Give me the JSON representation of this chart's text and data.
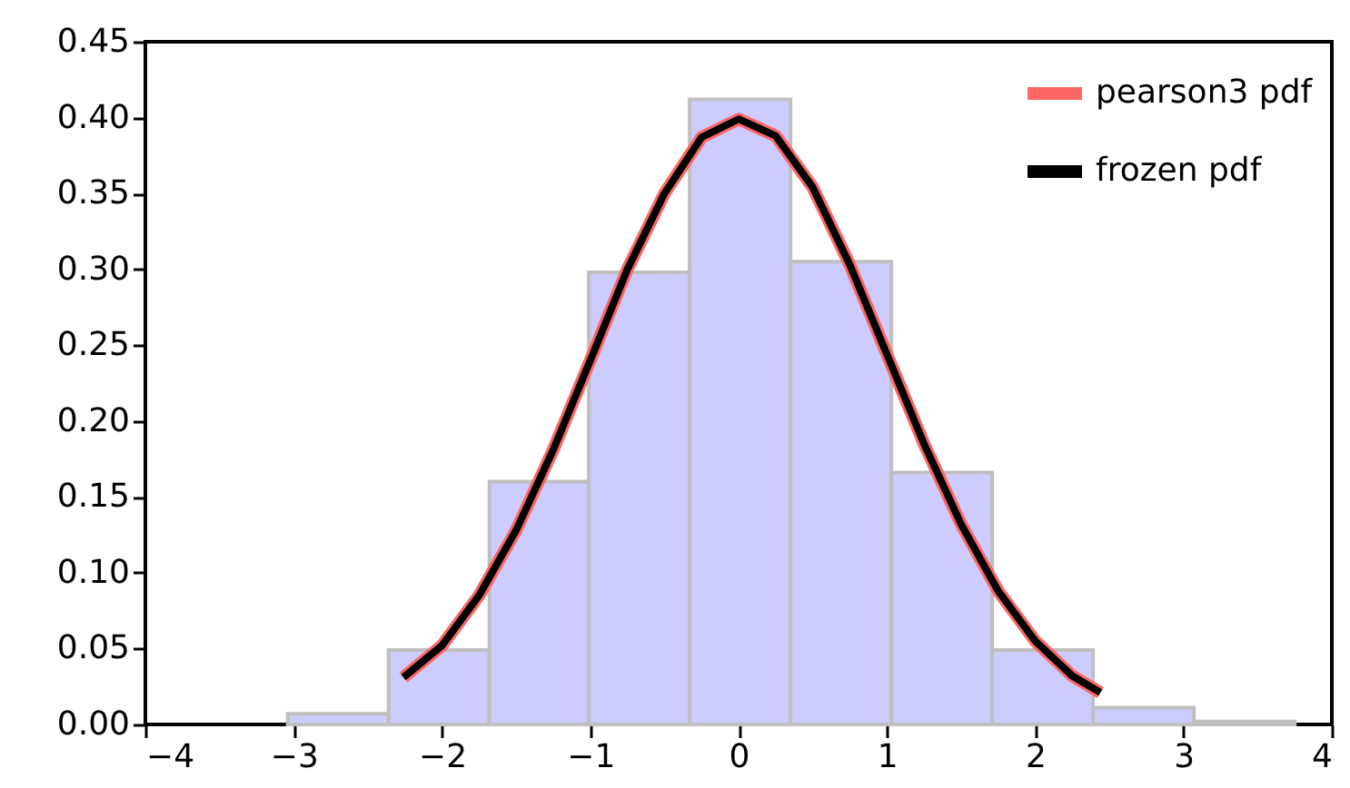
{
  "chart_data": {
    "type": "histogram",
    "bins": [
      -3.04,
      -2.36,
      -1.68,
      -1.01,
      -0.33,
      0.35,
      1.03,
      1.71,
      2.39,
      3.07,
      3.75
    ],
    "values": [
      0.007,
      0.049,
      0.16,
      0.298,
      0.412,
      0.305,
      0.166,
      0.049,
      0.011,
      0.002
    ],
    "color": "#ccccff",
    "series": [
      {
        "name": "pearson3 pdf",
        "type": "line",
        "color": "#ff6666",
        "x": [
          -2.26,
          -2,
          -1.75,
          -1.5,
          -1.25,
          -1,
          -0.75,
          -0.5,
          -0.25,
          0,
          0.25,
          0.5,
          0.75,
          1,
          1.25,
          1.5,
          1.75,
          2,
          2.25,
          2.44
        ],
        "values": [
          0.031,
          0.052,
          0.085,
          0.128,
          0.181,
          0.24,
          0.3,
          0.35,
          0.387,
          0.399,
          0.388,
          0.354,
          0.303,
          0.244,
          0.185,
          0.132,
          0.088,
          0.055,
          0.032,
          0.021
        ]
      },
      {
        "name": "frozen pdf",
        "type": "line",
        "color": "#000000",
        "x": [
          -2.26,
          -2,
          -1.75,
          -1.5,
          -1.25,
          -1,
          -0.75,
          -0.5,
          -0.25,
          0,
          0.25,
          0.5,
          0.75,
          1,
          1.25,
          1.5,
          1.75,
          2,
          2.25,
          2.44
        ],
        "values": [
          0.031,
          0.052,
          0.085,
          0.128,
          0.181,
          0.24,
          0.3,
          0.35,
          0.387,
          0.399,
          0.388,
          0.354,
          0.303,
          0.244,
          0.185,
          0.132,
          0.088,
          0.055,
          0.032,
          0.021
        ]
      }
    ],
    "xlim": [
      -4,
      4
    ],
    "xticks": [
      {
        "value": -4,
        "label": "−4"
      },
      {
        "value": -3,
        "label": "−3"
      },
      {
        "value": -2,
        "label": "−2"
      },
      {
        "value": -1,
        "label": "−1"
      },
      0,
      1,
      2,
      3,
      4
    ],
    "ylim": [
      0,
      0.45
    ],
    "yticks": [
      {
        "value": 0,
        "label": "0.00"
      },
      {
        "value": 0.05,
        "label": "0.05"
      },
      {
        "value": 0.1,
        "label": "0.10"
      },
      {
        "value": 0.15,
        "label": "0.15"
      },
      {
        "value": 0.2,
        "label": "0.20"
      },
      {
        "value": 0.25,
        "label": "0.25"
      },
      {
        "value": 0.3,
        "label": "0.30"
      },
      {
        "value": 0.35,
        "label": "0.35"
      },
      {
        "value": 0.4,
        "label": "0.40"
      },
      {
        "value": 0.45,
        "label": "0.45"
      }
    ],
    "legend": "top right",
    "grid": false
  }
}
